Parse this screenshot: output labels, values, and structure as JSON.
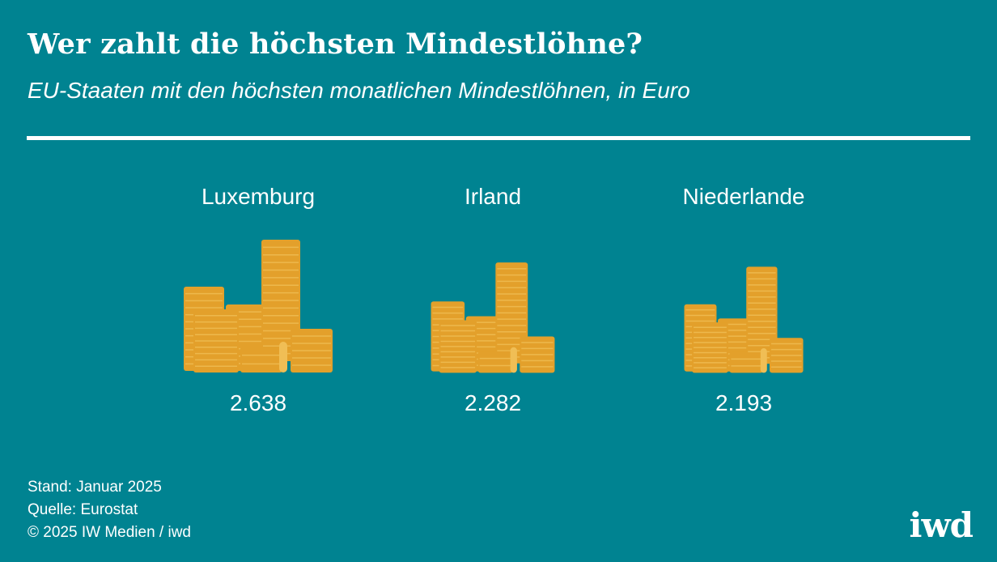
{
  "title": "Wer zahlt die höchsten Mindestlöhne?",
  "subtitle": "EU-Staaten mit den höchsten monatlichen Mindestlöhnen, in Euro",
  "footer": {
    "stand": "Stand: Januar 2025",
    "quelle": "Quelle: Eurostat",
    "copyright": "© 2025 IW Medien / iwd"
  },
  "logo": "iwd",
  "colors": {
    "background": "#008391",
    "coin": "#E3A02B",
    "coin_line": "#F0BE55",
    "text": "#FFFFFF"
  },
  "icon": "coin-stacks-icon",
  "chart_data": {
    "type": "bar",
    "categories": [
      "Luxemburg",
      "Irland",
      "Niederlande"
    ],
    "values": [
      2638,
      2282,
      2193
    ],
    "value_labels": [
      "2.638",
      "2.282",
      "2.193"
    ],
    "unit": "Euro",
    "grid": false,
    "legend": "none"
  }
}
